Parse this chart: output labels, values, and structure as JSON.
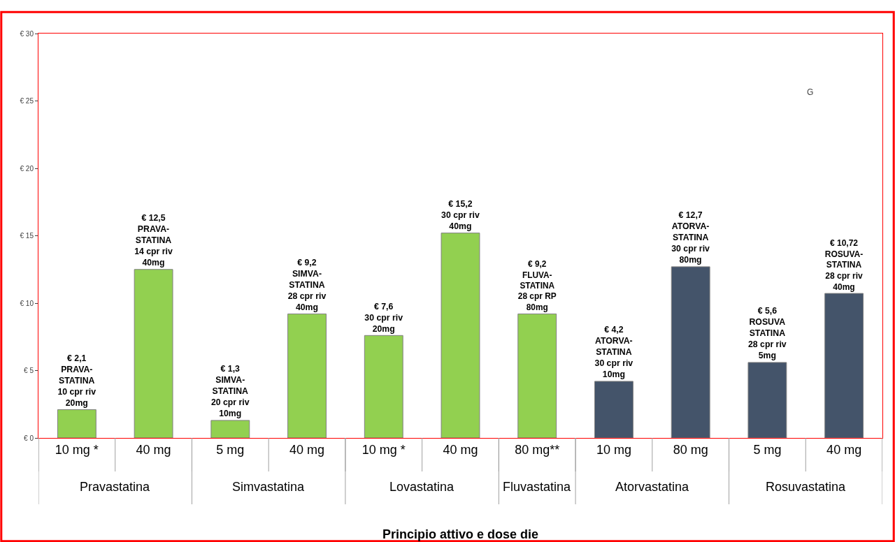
{
  "chart_data": {
    "type": "bar",
    "categories": [
      "10 mg *",
      "40 mg",
      "5 mg",
      "40 mg",
      "10 mg *",
      "40 mg",
      "80 mg**",
      "10 mg",
      "80 mg",
      "5 mg",
      "40 mg"
    ],
    "values": [
      2.1,
      12.5,
      1.3,
      9.2,
      7.6,
      15.2,
      9.2,
      4.2,
      12.7,
      5.6,
      10.72
    ],
    "colors": [
      "#92d050",
      "#92d050",
      "#92d050",
      "#92d050",
      "#92d050",
      "#92d050",
      "#92d050",
      "#44546a",
      "#44546a",
      "#44546a",
      "#44546a"
    ],
    "value_labels": [
      "€ 2,1\nPRAVA-\nSTATINA\n10 cpr riv\n20mg",
      "€ 12,5\nPRAVA-\nSTATINA\n14 cpr riv\n40mg",
      "€ 1,3\nSIMVA-\nSTATINA\n20 cpr riv\n10mg",
      "€ 9,2\nSIMVA-\nSTATINA\n28 cpr riv\n40mg",
      "€ 7,6\n30 cpr riv\n20mg",
      "€ 15,2\n30 cpr riv\n40mg",
      "€ 9,2\nFLUVA-\nSTATINA\n28 cpr RP\n80mg",
      "€ 4,2\nATORVA-\nSTATINA\n30 cpr riv\n10mg",
      "€ 12,7\nATORVA-\nSTATINA\n30 cpr riv\n80mg",
      "€ 5,6\nROSUVA\nSTATINA\n28 cpr riv\n5mg",
      "€ 10,72\nROSUVA-\nSTATINA\n28 cpr riv\n40mg"
    ],
    "ylim": [
      0,
      30
    ],
    "yticks": [
      {
        "value": 0,
        "label": "€ 0"
      },
      {
        "value": 5,
        "label": "€ 5"
      },
      {
        "value": 10,
        "label": "€ 10"
      },
      {
        "value": 15,
        "label": "€ 15"
      },
      {
        "value": 20,
        "label": "€ 20"
      },
      {
        "value": 25,
        "label": "€ 25"
      },
      {
        "value": 30,
        "label": "€ 30"
      }
    ],
    "annotations": [
      "Pravastatina",
      "Simvastatina",
      "Lovastatina",
      "Fluvastatina",
      "Atorvastatina",
      "Rosuvastatina",
      "G",
      "Principio attivo e dose die"
    ],
    "legend": false
  }
}
